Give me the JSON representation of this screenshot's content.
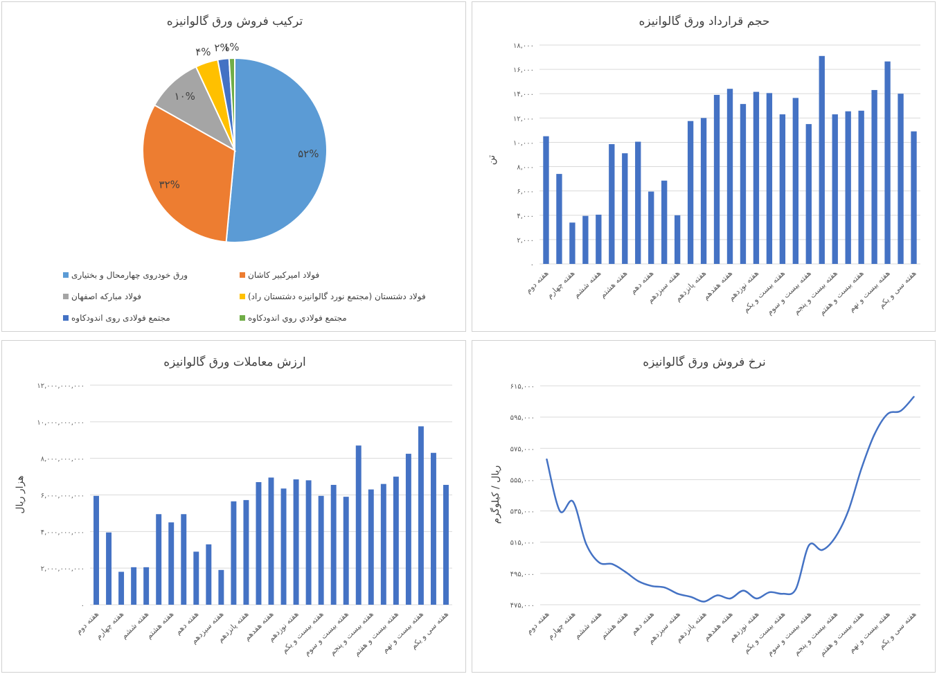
{
  "chart_data": [
    {
      "id": "pie",
      "type": "pie",
      "title": "ترکیب فروش ورق گالوانیزه",
      "series": [
        {
          "name": "ورق خودروی چهارمحال و بختیاری",
          "value": 52,
          "label": "۵۲%",
          "color": "#5b9bd5"
        },
        {
          "name": "فولاد امیرکبیر کاشان",
          "value": 32,
          "label": "۳۲%",
          "color": "#ed7d31"
        },
        {
          "name": "فولاد مبارکه اصفهان",
          "value": 10,
          "label": "۱۰%",
          "color": "#a5a5a5"
        },
        {
          "name": "فولاد دشتستان (مجتمع نورد گالوانیزه دشتستان راد)",
          "value": 4,
          "label": "۴%",
          "color": "#ffc000"
        },
        {
          "name": "مجتمع فولادی روی اندودکاوه",
          "value": 2,
          "label": "۲%",
          "color": "#4472c4"
        },
        {
          "name": "مجتمع فولادي روي اندودکاوه",
          "value": 1,
          "label": "۱%",
          "color": "#70ad47"
        }
      ],
      "legend": "bottom"
    },
    {
      "id": "volume",
      "type": "bar",
      "title": "حجم قرارداد ورق گالوانیزه",
      "ylabel": "تن",
      "ylim": [
        0,
        18000
      ],
      "yticks": [
        "۰",
        "۲,۰۰۰",
        "۴,۰۰۰",
        "۶,۰۰۰",
        "۸,۰۰۰",
        "۱۰,۰۰۰",
        "۱۲,۰۰۰",
        "۱۴,۰۰۰",
        "۱۶,۰۰۰",
        "۱۸,۰۰۰"
      ],
      "xtick_labels": [
        "هفته دوم",
        "هفته چهارم",
        "هفته ششم",
        "هفته هشتم",
        "هفته دهم",
        "هفته سیزدهم",
        "هفته پانزدهم",
        "هفته هفدهم",
        "هفته نوزدهم",
        "هفته بیست و یکم",
        "هفته بیست و سوم",
        "هفته بیست و پنجم",
        "هفته بیست و هفتم",
        "هفته بیست و نهم",
        "هفته سی و یکم"
      ],
      "values": [
        10500,
        7400,
        3400,
        3950,
        4050,
        9850,
        9100,
        10050,
        5950,
        6850,
        4000,
        11750,
        12000,
        13900,
        14400,
        13150,
        14150,
        14050,
        12300,
        13650,
        11500,
        17100,
        12300,
        12550,
        12600,
        14300,
        16650,
        14000,
        10900
      ],
      "color": "#4472c4",
      "grid": true
    },
    {
      "id": "value",
      "type": "bar",
      "title": "ارزش معاملات ورق گالوانیزه",
      "ylabel": "هزار ریال",
      "ylim": [
        0,
        12000000000
      ],
      "yticks": [
        "۰",
        "۲,۰۰۰,۰۰۰,۰۰۰",
        "۴,۰۰۰,۰۰۰,۰۰۰",
        "۶,۰۰۰,۰۰۰,۰۰۰",
        "۸,۰۰۰,۰۰۰,۰۰۰",
        "۱۰,۰۰۰,۰۰۰,۰۰۰",
        "۱۲,۰۰۰,۰۰۰,۰۰۰"
      ],
      "xtick_labels": [
        "هفته دوم",
        "هفته چهارم",
        "هفته ششم",
        "هفته هشتم",
        "هفته دهم",
        "هفته سیزدهم",
        "هفته پانزدهم",
        "هفته هفدهم",
        "هفته نوزدهم",
        "هفته بیست و یکم",
        "هفته بیست و سوم",
        "هفته بیست و پنجم",
        "هفته بیست و هفتم",
        "هفته بیست و نهم",
        "هفته سی و یکم"
      ],
      "values": [
        5950000000,
        3950000000,
        1800000000,
        2050000000,
        2050000000,
        4950000000,
        4500000000,
        4950000000,
        2900000000,
        3300000000,
        1900000000,
        5650000000,
        5720000000,
        6700000000,
        6950000000,
        6350000000,
        6850000000,
        6800000000,
        5950000000,
        6550000000,
        5900000000,
        8700000000,
        6300000000,
        6600000000,
        7000000000,
        8250000000,
        9750000000,
        8300000000,
        6550000000
      ],
      "color": "#4472c4",
      "grid": true
    },
    {
      "id": "price",
      "type": "line",
      "title": "نرخ فروش ورق گالوانیزه",
      "ylabel": "ریال / کیلوگرم",
      "ylim": [
        475000,
        615000
      ],
      "yticks": [
        "۴۷۵,۰۰۰",
        "۴۹۵,۰۰۰",
        "۵۱۵,۰۰۰",
        "۵۳۵,۰۰۰",
        "۵۵۵,۰۰۰",
        "۵۷۵,۰۰۰",
        "۵۹۵,۰۰۰",
        "۶۱۵,۰۰۰"
      ],
      "xtick_labels": [
        "هفته دوم",
        "هفته چهارم",
        "هفته ششم",
        "هفته هشتم",
        "هفته دهم",
        "هفته سیزدهم",
        "هفته پانزدهم",
        "هفته هفدهم",
        "هفته نوزدهم",
        "هفته بیست و یکم",
        "هفته بیست و سوم",
        "هفته بیست و پنجم",
        "هفته بیست و هفتم",
        "هفته بیست و نهم",
        "هفته سی و یکم"
      ],
      "values": [
        568000,
        535000,
        541000,
        514000,
        502000,
        501000,
        496000,
        490000,
        487000,
        486000,
        482000,
        480000,
        477000,
        481000,
        479000,
        484000,
        479000,
        483000,
        482000,
        485000,
        513000,
        510000,
        518000,
        535000,
        562000,
        584000,
        597000,
        599000,
        608000
      ],
      "color": "#4472c4",
      "grid": true
    }
  ]
}
